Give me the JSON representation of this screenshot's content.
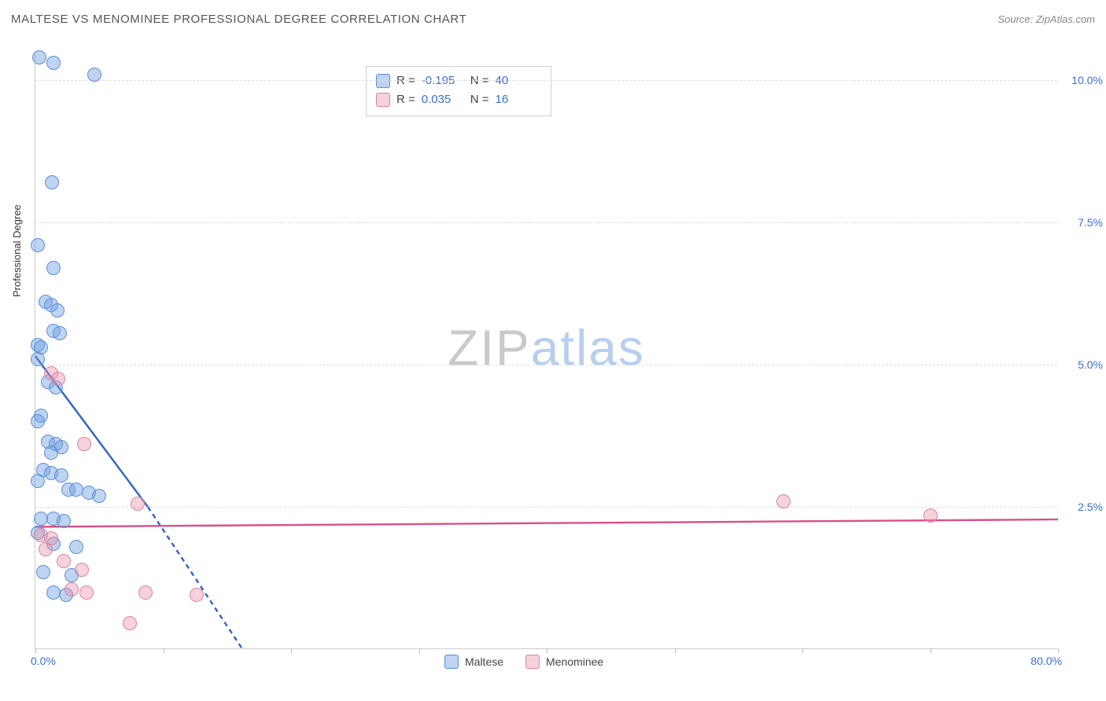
{
  "title": "MALTESE VS MENOMINEE PROFESSIONAL DEGREE CORRELATION CHART",
  "source_label": "Source: ZipAtlas.com",
  "ylabel": "Professional Degree",
  "watermark": {
    "part1": "ZIP",
    "part2": "atlas"
  },
  "axes": {
    "x_min": 0,
    "x_max": 80,
    "x_suffix": "%",
    "y_min": 0,
    "y_max": 10.5,
    "y_suffix": "%",
    "x_tick_start_label": "0.0%",
    "x_tick_end_label": "80.0%",
    "x_tick_positions": [
      0,
      10,
      20,
      30,
      40,
      50,
      60,
      70,
      80
    ],
    "y_gridlines": [
      2.5,
      5.0,
      7.5,
      10.0
    ],
    "y_tick_labels": [
      "2.5%",
      "5.0%",
      "7.5%",
      "10.0%"
    ]
  },
  "colors": {
    "series_a_fill": "rgba(110,160,225,0.45)",
    "series_a_stroke": "#5a8fd6",
    "series_b_fill": "rgba(235,140,165,0.40)",
    "series_b_stroke": "#d985a0",
    "line_a": "#2f62c6",
    "line_b": "#d94f87",
    "grid": "#dddddd",
    "axis": "#cccccc",
    "value_text": "#3b6fd6"
  },
  "marker_radius": 9,
  "marker_stroke_width": 1.3,
  "series": [
    {
      "name": "Maltese",
      "color_key": "a",
      "stats": {
        "R": "-0.195",
        "N": "40"
      },
      "trend": {
        "x1": 0,
        "y1": 5.15,
        "x2": 8.8,
        "y2": 2.5,
        "dash_to_x": 16.2,
        "dash_to_y": 0
      },
      "points": [
        [
          0.3,
          10.4
        ],
        [
          1.4,
          10.3
        ],
        [
          4.6,
          10.1
        ],
        [
          1.3,
          8.2
        ],
        [
          0.2,
          7.1
        ],
        [
          1.4,
          6.7
        ],
        [
          0.8,
          6.1
        ],
        [
          1.2,
          6.05
        ],
        [
          1.7,
          5.95
        ],
        [
          1.4,
          5.6
        ],
        [
          1.9,
          5.55
        ],
        [
          0.2,
          5.35
        ],
        [
          0.4,
          5.3
        ],
        [
          0.2,
          5.1
        ],
        [
          1.0,
          4.7
        ],
        [
          1.6,
          4.6
        ],
        [
          0.4,
          4.1
        ],
        [
          0.2,
          4.0
        ],
        [
          1.0,
          3.65
        ],
        [
          1.6,
          3.6
        ],
        [
          2.0,
          3.55
        ],
        [
          1.2,
          3.45
        ],
        [
          0.6,
          3.15
        ],
        [
          1.2,
          3.1
        ],
        [
          2.0,
          3.05
        ],
        [
          0.2,
          2.95
        ],
        [
          2.6,
          2.8
        ],
        [
          3.2,
          2.8
        ],
        [
          4.2,
          2.75
        ],
        [
          5.0,
          2.7
        ],
        [
          0.4,
          2.3
        ],
        [
          1.4,
          2.3
        ],
        [
          2.2,
          2.25
        ],
        [
          0.2,
          2.05
        ],
        [
          1.4,
          1.85
        ],
        [
          3.2,
          1.8
        ],
        [
          0.6,
          1.35
        ],
        [
          2.8,
          1.3
        ],
        [
          1.4,
          1.0
        ],
        [
          2.4,
          0.95
        ]
      ]
    },
    {
      "name": "Menominee",
      "color_key": "b",
      "stats": {
        "R": "0.035",
        "N": "16"
      },
      "trend": {
        "x1": 0,
        "y1": 2.15,
        "x2": 80,
        "y2": 2.28
      },
      "points": [
        [
          1.2,
          4.85
        ],
        [
          1.8,
          4.75
        ],
        [
          3.8,
          3.6
        ],
        [
          8.0,
          2.55
        ],
        [
          58.5,
          2.6
        ],
        [
          70.0,
          2.35
        ],
        [
          0.4,
          2.0
        ],
        [
          1.2,
          1.95
        ],
        [
          0.8,
          1.75
        ],
        [
          2.2,
          1.55
        ],
        [
          3.6,
          1.4
        ],
        [
          2.8,
          1.05
        ],
        [
          4.0,
          1.0
        ],
        [
          8.6,
          1.0
        ],
        [
          12.6,
          0.95
        ],
        [
          7.4,
          0.45
        ]
      ]
    }
  ],
  "legend": {
    "items": [
      {
        "label": "Maltese",
        "color_key": "a"
      },
      {
        "label": "Menominee",
        "color_key": "b"
      }
    ]
  }
}
